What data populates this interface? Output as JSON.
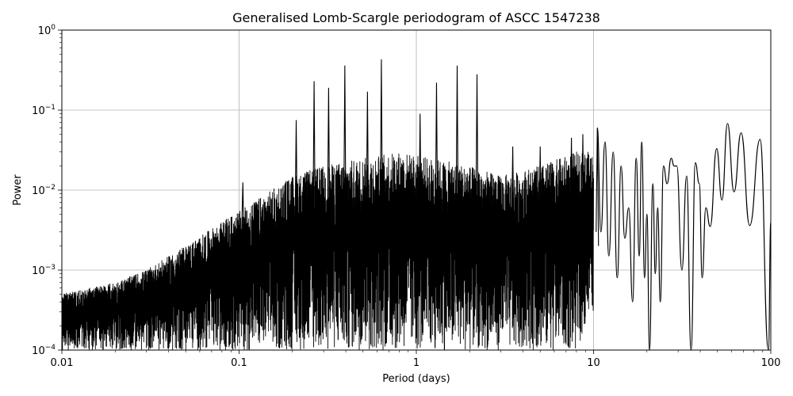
{
  "chart_data": {
    "type": "line",
    "title": "Generalised Lomb-Scargle periodogram of ASCC 1547238",
    "xlabel": "Period (days)",
    "ylabel": "Power",
    "x_scale": "log",
    "y_scale": "log",
    "xlim": [
      0.01,
      100
    ],
    "ylim": [
      0.0001,
      1
    ],
    "grid": true,
    "legend": "none",
    "line_color": "#000000",
    "x_ticks": [
      {
        "value": 0.01,
        "label": "0.01"
      },
      {
        "value": 0.1,
        "label": "0.1"
      },
      {
        "value": 1,
        "label": "1"
      },
      {
        "value": 10,
        "label": "10"
      },
      {
        "value": 100,
        "label": "100"
      }
    ],
    "y_ticks": [
      {
        "value": 0.0001,
        "base": "10",
        "exp": "−4"
      },
      {
        "value": 0.001,
        "base": "10",
        "exp": "−3"
      },
      {
        "value": 0.01,
        "base": "10",
        "exp": "−2"
      },
      {
        "value": 0.1,
        "base": "10",
        "exp": "−1"
      },
      {
        "value": 1,
        "base": "10",
        "exp": "0"
      }
    ],
    "notable_peaks": [
      {
        "period": 0.105,
        "power": 0.0125
      },
      {
        "period": 0.21,
        "power": 0.075
      },
      {
        "period": 0.265,
        "power": 0.23
      },
      {
        "period": 0.32,
        "power": 0.19
      },
      {
        "period": 0.395,
        "power": 0.36
      },
      {
        "period": 0.53,
        "power": 0.17
      },
      {
        "period": 0.635,
        "power": 0.43
      },
      {
        "period": 1.05,
        "power": 0.09
      },
      {
        "period": 1.3,
        "power": 0.22
      },
      {
        "period": 1.7,
        "power": 0.36
      },
      {
        "period": 2.2,
        "power": 0.28
      },
      {
        "period": 3.5,
        "power": 0.035
      },
      {
        "period": 5.0,
        "power": 0.035
      },
      {
        "period": 7.5,
        "power": 0.045
      },
      {
        "period": 8.7,
        "power": 0.05
      },
      {
        "period": 10.5,
        "power": 0.06
      }
    ],
    "envelope": [
      {
        "period": 0.01,
        "upper": 0.0005,
        "lower": 0.0001
      },
      {
        "period": 0.02,
        "upper": 0.0007,
        "lower": 0.0001
      },
      {
        "period": 0.03,
        "upper": 0.001,
        "lower": 0.0001
      },
      {
        "period": 0.05,
        "upper": 0.002,
        "lower": 0.0001
      },
      {
        "period": 0.08,
        "upper": 0.004,
        "lower": 0.0001
      },
      {
        "period": 0.12,
        "upper": 0.007,
        "lower": 0.0001
      },
      {
        "period": 0.2,
        "upper": 0.015,
        "lower": 0.0001
      },
      {
        "period": 0.3,
        "upper": 0.02,
        "lower": 0.0001
      },
      {
        "period": 0.5,
        "upper": 0.025,
        "lower": 0.0001
      },
      {
        "period": 0.8,
        "upper": 0.03,
        "lower": 0.0001
      },
      {
        "period": 1.2,
        "upper": 0.025,
        "lower": 0.0001
      },
      {
        "period": 2.0,
        "upper": 0.02,
        "lower": 0.0001
      },
      {
        "period": 3.0,
        "upper": 0.015,
        "lower": 0.0001
      },
      {
        "period": 5.0,
        "upper": 0.02,
        "lower": 0.0001
      },
      {
        "period": 8.0,
        "upper": 0.03,
        "lower": 0.0001
      },
      {
        "period": 10.0,
        "upper": 0.03,
        "lower": 0.0003
      }
    ],
    "long_period_curve": [
      {
        "period": 10.5,
        "power": 0.06
      },
      {
        "period": 11.0,
        "power": 0.003
      },
      {
        "period": 11.6,
        "power": 0.04
      },
      {
        "period": 12.2,
        "power": 0.0015
      },
      {
        "period": 12.9,
        "power": 0.03
      },
      {
        "period": 13.6,
        "power": 0.0008
      },
      {
        "period": 14.3,
        "power": 0.02
      },
      {
        "period": 15.0,
        "power": 0.0025
      },
      {
        "period": 15.8,
        "power": 0.006
      },
      {
        "period": 16.6,
        "power": 0.0004
      },
      {
        "period": 17.4,
        "power": 0.025
      },
      {
        "period": 18.1,
        "power": 0.0015
      },
      {
        "period": 18.7,
        "power": 0.04
      },
      {
        "period": 19.4,
        "power": 0.0008
      },
      {
        "period": 20.0,
        "power": 0.005
      },
      {
        "period": 20.7,
        "power": 0.0001
      },
      {
        "period": 21.6,
        "power": 0.012
      },
      {
        "period": 22.3,
        "power": 0.0009
      },
      {
        "period": 23.0,
        "power": 0.006
      },
      {
        "period": 23.8,
        "power": 0.0004
      },
      {
        "period": 24.8,
        "power": 0.02
      },
      {
        "period": 26.0,
        "power": 0.012
      },
      {
        "period": 27.4,
        "power": 0.025
      },
      {
        "period": 28.5,
        "power": 0.02
      },
      {
        "period": 29.5,
        "power": 0.02
      },
      {
        "period": 31.5,
        "power": 0.001
      },
      {
        "period": 33.5,
        "power": 0.015
      },
      {
        "period": 35.5,
        "power": 0.0001
      },
      {
        "period": 37.5,
        "power": 0.022
      },
      {
        "period": 39.5,
        "power": 0.012
      },
      {
        "period": 41.0,
        "power": 0.0008
      },
      {
        "period": 43.0,
        "power": 0.006
      },
      {
        "period": 45.5,
        "power": 0.0035
      },
      {
        "period": 49.5,
        "power": 0.033
      },
      {
        "period": 53.0,
        "power": 0.0075
      },
      {
        "period": 57.0,
        "power": 0.068
      },
      {
        "period": 62.0,
        "power": 0.0095
      },
      {
        "period": 68.0,
        "power": 0.052
      },
      {
        "period": 76.0,
        "power": 0.0036
      },
      {
        "period": 87.0,
        "power": 0.043
      },
      {
        "period": 97.0,
        "power": 0.0001
      },
      {
        "period": 100.0,
        "power": 0.004
      }
    ]
  }
}
